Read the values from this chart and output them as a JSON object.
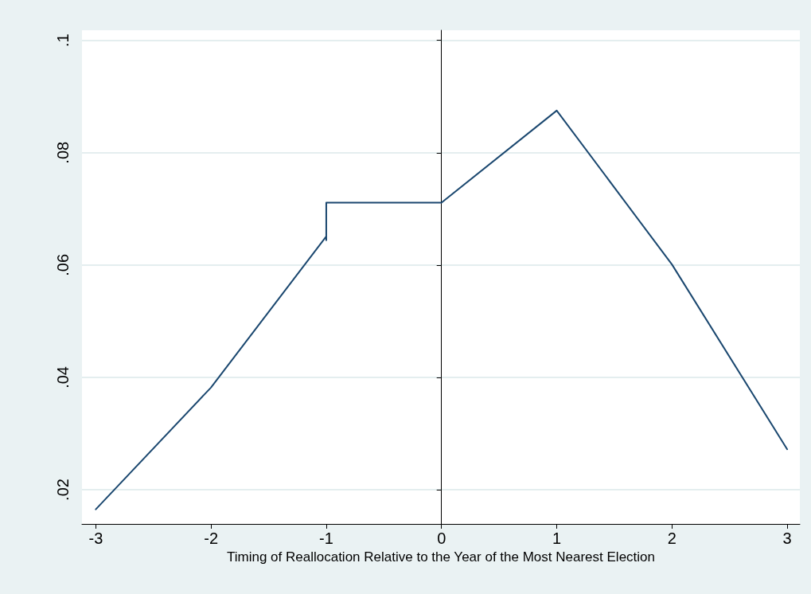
{
  "chart_data": {
    "type": "line",
    "xlabel": "Timing of Reallocation Relative to the Year of the Most Nearest Election",
    "x": [
      -3,
      -2,
      -1,
      -1,
      -1,
      0,
      1,
      2,
      3
    ],
    "series": [
      {
        "color": "#1a476f",
        "values": [
          0.0165,
          0.0382,
          0.0651,
          0.0644,
          0.0711,
          0.0711,
          0.0875,
          0.0601,
          0.0272
        ]
      }
    ],
    "xlim": [
      -3.12,
      3.11
    ],
    "xticks": [
      -3,
      -2,
      -1,
      0,
      1,
      2,
      3
    ],
    "ylim": [
      0.0139,
      0.1018
    ],
    "yticks": [
      {
        "value": 0.02,
        "label": ".02"
      },
      {
        "value": 0.04,
        "label": ".04"
      },
      {
        "value": 0.06,
        "label": ".06"
      },
      {
        "value": 0.08,
        "label": ".08"
      },
      {
        "value": 0.1,
        "label": ".1"
      }
    ],
    "grid": "y",
    "marker": "none",
    "line_style": "solid"
  }
}
